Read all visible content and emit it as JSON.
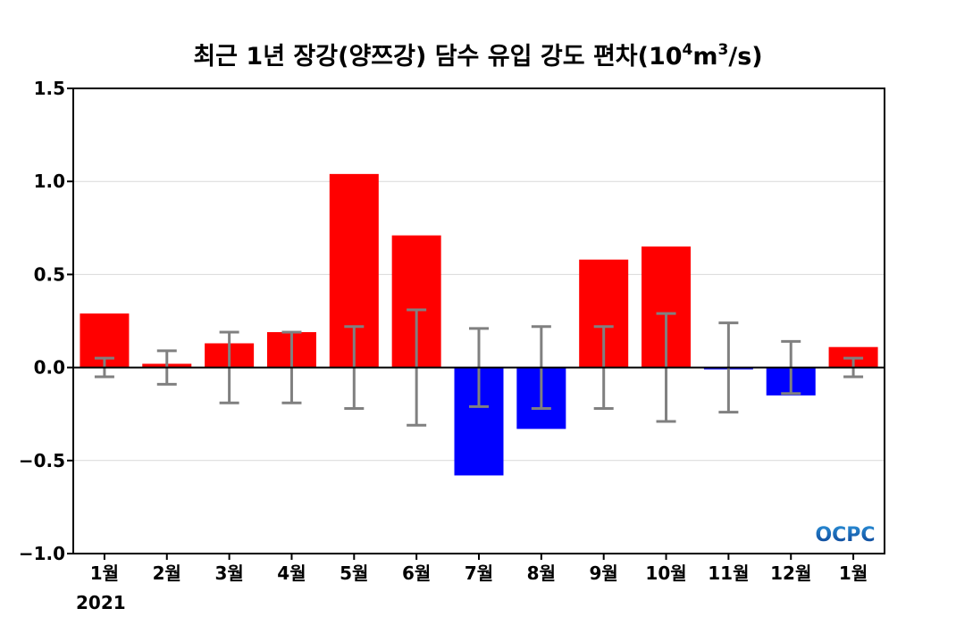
{
  "chart_data": {
    "type": "bar",
    "title_parts": {
      "main": "최근 1년 장강(양쯔강) 담수 유입 강도 편차(10",
      "sup1": "4",
      "mid": "m",
      "sup2": "3",
      "end": "/s)"
    },
    "categories": [
      "1월",
      "2월",
      "3월",
      "4월",
      "5월",
      "6월",
      "7월",
      "8월",
      "9월",
      "10월",
      "11월",
      "12월",
      "1월"
    ],
    "year_label": "2021",
    "values": [
      0.29,
      0.02,
      0.13,
      0.19,
      1.04,
      0.71,
      -0.58,
      -0.33,
      0.58,
      0.65,
      -0.01,
      -0.15,
      0.11
    ],
    "error_bars": [
      0.05,
      0.09,
      0.19,
      0.19,
      0.22,
      0.31,
      0.21,
      0.22,
      0.22,
      0.29,
      0.24,
      0.14,
      0.05
    ],
    "ylim": [
      -1.0,
      1.5
    ],
    "yticks": [
      1.5,
      1.0,
      0.5,
      0.0,
      -0.5,
      -1.0
    ],
    "ytick_labels": [
      "1.5",
      "1.0",
      "0.5",
      "0.0",
      "−0.5",
      "−1.0"
    ],
    "grid": true,
    "colors": {
      "positive": "#ff0000",
      "negative": "#0000ff",
      "error_bar": "#808080",
      "zero_line": "#000000",
      "grid": "#d9d9d9"
    }
  },
  "logo": {
    "text": "OCPC",
    "color_top": "#2a8fd6",
    "color_bottom": "#0a3d91"
  }
}
